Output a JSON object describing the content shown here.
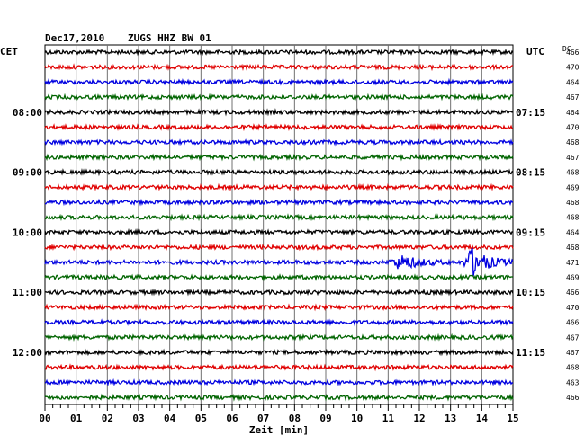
{
  "header": {
    "date": "Dec17,2010",
    "station": "ZUGS HHZ BW 01",
    "left_zone": "CET",
    "right_zone": "UTC",
    "dc_label": "DC"
  },
  "chart_data": {
    "type": "line",
    "title": "Dec17,2010  ZUGS HHZ BW 01",
    "xlabel": "Zeit [min]",
    "xlim": [
      0,
      15
    ],
    "x_ticks": [
      "00",
      "01",
      "02",
      "03",
      "04",
      "05",
      "06",
      "07",
      "08",
      "09",
      "10",
      "11",
      "12",
      "13",
      "14",
      "15"
    ],
    "trace_colors": [
      "#000000",
      "#e00000",
      "#0000e0",
      "#006400"
    ],
    "left_hour_labels": [
      {
        "row": 4,
        "label": "08:00"
      },
      {
        "row": 8,
        "label": "09:00"
      },
      {
        "row": 12,
        "label": "10:00"
      },
      {
        "row": 16,
        "label": "11:00"
      },
      {
        "row": 20,
        "label": "12:00"
      }
    ],
    "right_hour_labels": [
      {
        "row": 4,
        "label": "07:15"
      },
      {
        "row": 8,
        "label": "08:15"
      },
      {
        "row": 12,
        "label": "09:15"
      },
      {
        "row": 16,
        "label": "10:15"
      },
      {
        "row": 20,
        "label": "11:15"
      }
    ],
    "dc_offsets": [
      466,
      470,
      464,
      467,
      464,
      470,
      468,
      467,
      468,
      469,
      468,
      468,
      464,
      468,
      471,
      469,
      466,
      470,
      466,
      467,
      467,
      468,
      463,
      466
    ],
    "events": [
      {
        "row": 14,
        "start_min": 11.0,
        "peak_min": 11.4,
        "end_min": 13.0,
        "amplitude": 0.45
      },
      {
        "row": 14,
        "start_min": 13.4,
        "peak_min": 13.65,
        "end_min": 15.0,
        "amplitude": 1.0
      }
    ]
  }
}
